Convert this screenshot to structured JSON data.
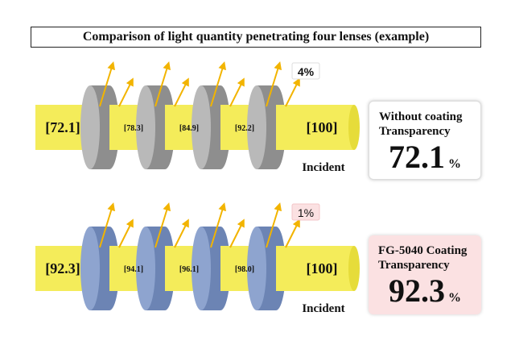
{
  "title": "Comparison of light quantity penetrating four lenses (example)",
  "colors": {
    "beam": "#f4ec5a",
    "beam_edge": "#e6dc3a",
    "lens_uncoated": "#b9b9b9",
    "lens_uncoated_dark": "#8e8e8e",
    "lens_coated": "#8ea4cf",
    "lens_coated_dark": "#6c84b4",
    "arrow": "#f2b400",
    "badge_pink": "#fbe1e2"
  },
  "rows": [
    {
      "id": "without",
      "values": [
        "72.1",
        "78.3",
        "84.9",
        "92.2",
        "100"
      ],
      "reflection": "4%",
      "incident_label": "Incident",
      "box_line1": "Without coating",
      "box_line2": "Transparency",
      "box_value": "72.1",
      "box_unit": "%"
    },
    {
      "id": "coated",
      "values": [
        "92.3",
        "94.1",
        "96.1",
        "98.0",
        "100"
      ],
      "reflection": "1%",
      "incident_label": "Incident",
      "box_line1": "FG-5040 Coating",
      "box_line2": "Transparency",
      "box_value": "92.3",
      "box_unit": "%"
    }
  ]
}
